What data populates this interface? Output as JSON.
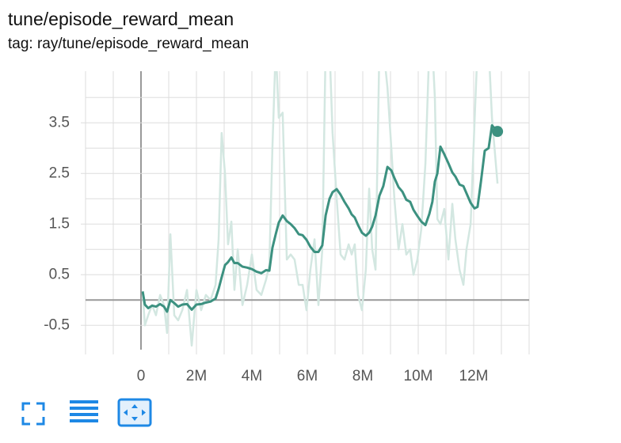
{
  "chart_data": {
    "type": "line",
    "title": "tune/episode_reward_mean",
    "subtitle": "tag: ray/tune/episode_reward_mean",
    "x": [
      60000,
      140000,
      260000,
      400000,
      540000,
      690000,
      830000,
      940000,
      1060000,
      1200000,
      1340000,
      1490000,
      1660000,
      1830000,
      2000000,
      2170000,
      2340000,
      2510000,
      2690000,
      2800000,
      2910000,
      3030000,
      3140000,
      3260000,
      3370000,
      3490000,
      3660000,
      3830000,
      4000000,
      4170000,
      4340000,
      4510000,
      4630000,
      4740000,
      4860000,
      4970000,
      5110000,
      5260000,
      5400000,
      5540000,
      5690000,
      5830000,
      5970000,
      6110000,
      6260000,
      6400000,
      6540000,
      6660000,
      6800000,
      6910000,
      7060000,
      7200000,
      7340000,
      7490000,
      7600000,
      7710000,
      7830000,
      7970000,
      8110000,
      8230000,
      8340000,
      8460000,
      8600000,
      8740000,
      8890000,
      9030000,
      9140000,
      9290000,
      9430000,
      9570000,
      9710000,
      9830000,
      9970000,
      10110000,
      10260000,
      10400000,
      10510000,
      10600000,
      10690000,
      10800000,
      10940000,
      11090000,
      11230000,
      11340000,
      11490000,
      11630000,
      11740000,
      11890000,
      12030000,
      12140000,
      12260000,
      12400000,
      12540000,
      12660000,
      12860000
    ],
    "series": [
      {
        "color": "#d3e7e1",
        "values": [
          0.17,
          -0.5,
          -0.3,
          -0.1,
          -0.3,
          0.1,
          -0.1,
          -0.65,
          1.3,
          -0.3,
          -0.4,
          -0.2,
          0.2,
          -0.9,
          0.2,
          -0.2,
          0.1,
          0,
          0.3,
          1.2,
          3.3,
          2.5,
          1.1,
          1.55,
          0.2,
          1.0,
          -0.1,
          0.3,
          0.9,
          0.2,
          0.1,
          0.4,
          0.7,
          3.0,
          5.0,
          3.6,
          3.7,
          0.8,
          0.9,
          0.8,
          0.3,
          0.3,
          -0.2,
          0.6,
          1.2,
          -0.1,
          1.0,
          5.0,
          5.0,
          3.3,
          2.0,
          0.9,
          0.8,
          1.1,
          0.9,
          1.1,
          0.1,
          -0.2,
          0.6,
          2.2,
          1.0,
          0.6,
          5.0,
          5.0,
          4.2,
          3.0,
          2.0,
          1.0,
          1.5,
          0.9,
          1.0,
          0.5,
          0.8,
          1.4,
          2.7,
          5.0,
          5.0,
          4.0,
          1.6,
          1.5,
          1.8,
          0.8,
          1.9,
          1.2,
          0.6,
          0.3,
          1.0,
          1.5,
          3.5,
          5.0,
          5.0,
          5.0,
          5.0,
          3.6,
          2.3
        ]
      },
      {
        "color": "#3c9180",
        "values": [
          0.17,
          -0.09,
          -0.16,
          -0.11,
          -0.13,
          -0.08,
          -0.13,
          -0.23,
          0,
          -0.06,
          -0.13,
          -0.09,
          -0.08,
          -0.19,
          -0.09,
          -0.08,
          -0.05,
          -0.03,
          0.03,
          0.22,
          0.45,
          0.69,
          0.75,
          0.84,
          0.73,
          0.73,
          0.66,
          0.64,
          0.61,
          0.56,
          0.53,
          0.59,
          0.58,
          1.03,
          1.3,
          1.53,
          1.67,
          1.56,
          1.5,
          1.42,
          1.3,
          1.28,
          1.19,
          1.05,
          0.95,
          0.95,
          1.08,
          1.67,
          2.0,
          2.13,
          2.19,
          2.08,
          1.94,
          1.81,
          1.69,
          1.63,
          1.48,
          1.33,
          1.27,
          1.33,
          1.45,
          1.67,
          2.06,
          2.25,
          2.63,
          2.56,
          2.41,
          2.23,
          2.14,
          1.98,
          1.94,
          1.78,
          1.66,
          1.55,
          1.48,
          1.7,
          1.94,
          2.34,
          2.5,
          3.03,
          2.88,
          2.7,
          2.52,
          2.44,
          2.28,
          2.25,
          2.11,
          1.92,
          1.81,
          1.84,
          2.33,
          2.95,
          3.0,
          3.45,
          3.33
        ]
      }
    ],
    "xlim": [
      -2000000,
      14000000
    ],
    "xticks": [
      0,
      {
        "value": 2000000,
        "label": "2M"
      },
      {
        "value": 4000000,
        "label": "4M"
      },
      {
        "value": 6000000,
        "label": "6M"
      },
      {
        "value": 8000000,
        "label": "8M"
      },
      {
        "value": 10000000,
        "label": "10M"
      },
      {
        "value": 12000000,
        "label": "12M"
      }
    ],
    "x_gridlines": [
      -2000000,
      -1000000,
      0,
      1000000,
      2000000,
      3000000,
      4000000,
      5000000,
      6000000,
      7000000,
      8000000,
      9000000,
      10000000,
      11000000,
      12000000,
      13000000,
      14000000
    ],
    "ylim": [
      -0.98,
      4.52
    ],
    "yticks": [
      -0.5,
      0.5,
      1.5,
      2.5,
      3.5
    ],
    "y_gridlines": [
      0,
      1,
      2,
      3,
      4
    ],
    "grid": true
  }
}
